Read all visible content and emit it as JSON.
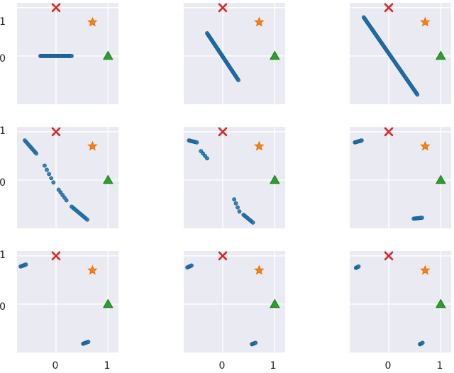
{
  "chart_data": {
    "type": "scatter",
    "layout": {
      "rows": 3,
      "cols": 3
    },
    "xlim": [
      -0.75,
      1.2
    ],
    "ylim": [
      -1.0,
      1.1
    ],
    "grid": true,
    "xticks": [
      0,
      1
    ],
    "yticks": [
      0,
      1
    ],
    "xtick_labels": [
      "0",
      "1"
    ],
    "ytick_labels": [
      "0",
      "1"
    ],
    "markers": [
      {
        "kind": "cross",
        "x": 0.0,
        "y": 1.0,
        "color": "#d62728"
      },
      {
        "kind": "star",
        "x": 0.7,
        "y": 0.7,
        "color": "#ff7f0e"
      },
      {
        "kind": "triangle",
        "x": 1.0,
        "y": 0.0,
        "color": "#2ca02c"
      }
    ],
    "point_color": "#1f77b4",
    "panels": [
      {
        "row": 0,
        "col": 0,
        "segments": [
          {
            "x0": -0.3,
            "y0": 0.0,
            "x1": 0.3,
            "y1": 0.0,
            "n": 40
          }
        ]
      },
      {
        "row": 0,
        "col": 1,
        "segments": [
          {
            "x0": -0.3,
            "y0": 0.47,
            "x1": 0.3,
            "y1": -0.5,
            "n": 50
          }
        ]
      },
      {
        "row": 0,
        "col": 2,
        "segments": [
          {
            "x0": -0.48,
            "y0": 0.8,
            "x1": 0.55,
            "y1": -0.8,
            "n": 70
          }
        ]
      },
      {
        "row": 1,
        "col": 0,
        "segments": [
          {
            "x0": -0.6,
            "y0": 0.82,
            "x1": -0.38,
            "y1": 0.55,
            "n": 10
          },
          {
            "x0": -0.22,
            "y0": 0.3,
            "x1": -0.05,
            "y1": -0.05,
            "n": 5
          },
          {
            "x0": 0.05,
            "y0": -0.2,
            "x1": 0.2,
            "y1": -0.42,
            "n": 5
          },
          {
            "x0": 0.3,
            "y0": -0.55,
            "x1": 0.6,
            "y1": -0.82,
            "n": 12
          }
        ]
      },
      {
        "row": 1,
        "col": 1,
        "segments": [
          {
            "x0": -0.65,
            "y0": 0.82,
            "x1": -0.5,
            "y1": 0.78,
            "n": 8
          },
          {
            "x0": -0.42,
            "y0": 0.6,
            "x1": -0.3,
            "y1": 0.45,
            "n": 4
          },
          {
            "x0": 0.22,
            "y0": -0.4,
            "x1": 0.32,
            "y1": -0.65,
            "n": 4
          },
          {
            "x0": 0.4,
            "y0": -0.72,
            "x1": 0.58,
            "y1": -0.88,
            "n": 8
          }
        ]
      },
      {
        "row": 1,
        "col": 2,
        "segments": [
          {
            "x0": -0.65,
            "y0": 0.78,
            "x1": -0.52,
            "y1": 0.82,
            "n": 8
          },
          {
            "x0": 0.48,
            "y0": -0.8,
            "x1": 0.64,
            "y1": -0.78,
            "n": 8
          }
        ]
      },
      {
        "row": 2,
        "col": 0,
        "segments": [
          {
            "x0": -0.68,
            "y0": 0.78,
            "x1": -0.58,
            "y1": 0.82,
            "n": 6
          },
          {
            "x0": 0.52,
            "y0": -0.82,
            "x1": 0.62,
            "y1": -0.78,
            "n": 6
          }
        ]
      },
      {
        "row": 2,
        "col": 1,
        "segments": [
          {
            "x0": -0.68,
            "y0": 0.76,
            "x1": -0.6,
            "y1": 0.8,
            "n": 5
          },
          {
            "x0": 0.56,
            "y0": -0.83,
            "x1": 0.63,
            "y1": -0.8,
            "n": 5
          }
        ]
      },
      {
        "row": 2,
        "col": 2,
        "segments": [
          {
            "x0": -0.63,
            "y0": 0.75,
            "x1": -0.58,
            "y1": 0.78,
            "n": 4
          },
          {
            "x0": 0.6,
            "y0": -0.83,
            "x1": 0.65,
            "y1": -0.8,
            "n": 4
          }
        ]
      }
    ]
  }
}
